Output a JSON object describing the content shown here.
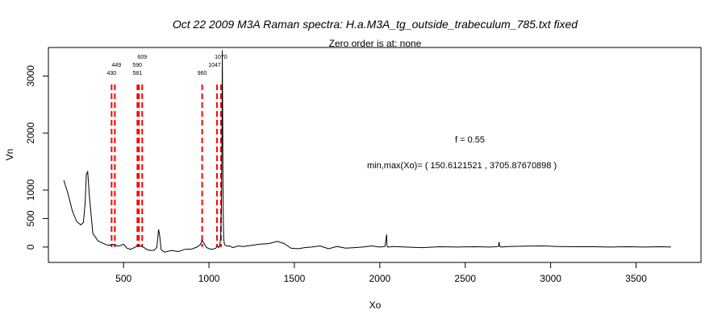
{
  "chart_data": {
    "type": "line",
    "title": "Oct 22 2009 M3A Raman spectra: H.a.M3A_tg_outside_trabeculum_785.txt fixed",
    "subtitle": "Zero order is at:  none",
    "xlabel": "Xo",
    "ylabel": "Vn",
    "xlim": [
      60,
      3880
    ],
    "ylim": [
      -270,
      3500
    ],
    "x_ticks": [
      500,
      1000,
      1500,
      2000,
      2500,
      3000,
      3500
    ],
    "y_ticks": [
      0,
      500,
      1000,
      2000,
      3000
    ],
    "grid": false,
    "legend": "none",
    "line_color": "#000000",
    "marker_color": "#ff0000",
    "peak_markers": [
      {
        "label": "430",
        "x": 430
      },
      {
        "label": "449",
        "x": 449
      },
      {
        "label": "581",
        "x": 581
      },
      {
        "label": "590",
        "x": 590
      },
      {
        "label": "609",
        "x": 609
      },
      {
        "label": "960",
        "x": 960
      },
      {
        "label": "1047",
        "x": 1047
      },
      {
        "label": "1070",
        "x": 1070
      }
    ],
    "marker_range": [
      0,
      2850
    ],
    "annotations": {
      "f_text": "f =  0.55",
      "minmax_text": "min,max(Xo)= ( 150.6121521 , 3705.87670898 )"
    },
    "series": [
      {
        "x": [
          150,
          175,
          200,
          225,
          250,
          265,
          275,
          282,
          290,
          300,
          320,
          350,
          380,
          410,
          440,
          470,
          500,
          520,
          540,
          560,
          580,
          600,
          620,
          640,
          660,
          680,
          695,
          705,
          712,
          720,
          740,
          780,
          820,
          860,
          900,
          930,
          950,
          960,
          972,
          985,
          1000,
          1020,
          1040,
          1050,
          1058,
          1063,
          1068,
          1073,
          1076,
          1078,
          1080,
          1082,
          1084,
          1086,
          1090,
          1096,
          1105,
          1120,
          1140,
          1170,
          1200,
          1250,
          1300,
          1350,
          1400,
          1440,
          1480,
          1520,
          1560,
          1600,
          1650,
          1700,
          1750,
          1800,
          1850,
          1900,
          1950,
          2000,
          2030,
          2040,
          2042,
          2044,
          2046,
          2050,
          2080,
          2150,
          2250,
          2350,
          2450,
          2550,
          2650,
          2695,
          2698,
          2701,
          2704,
          2710,
          2750,
          2850,
          2950,
          3050,
          3150,
          3250,
          3350,
          3450,
          3550,
          3650,
          3705
        ],
        "y": [
          1170,
          930,
          640,
          450,
          390,
          430,
          760,
          1270,
          1330,
          890,
          240,
          110,
          65,
          30,
          45,
          15,
          50,
          -20,
          -40,
          -15,
          20,
          20,
          -10,
          -50,
          -60,
          -55,
          0,
          310,
          180,
          -50,
          -90,
          -60,
          -80,
          -40,
          -35,
          0,
          45,
          120,
          60,
          -5,
          -30,
          -40,
          -20,
          20,
          -10,
          30,
          150,
          700,
          2000,
          3450,
          2400,
          1100,
          420,
          150,
          60,
          30,
          15,
          20,
          -10,
          20,
          10,
          30,
          50,
          60,
          100,
          60,
          -20,
          -30,
          -10,
          0,
          20,
          -30,
          10,
          -20,
          -10,
          0,
          20,
          0,
          10,
          220,
          30,
          10,
          0,
          0,
          10,
          0,
          -10,
          5,
          0,
          5,
          0,
          10,
          90,
          20,
          5,
          0,
          10,
          15,
          20,
          10,
          5,
          5,
          0,
          5,
          0,
          5,
          0
        ]
      }
    ]
  }
}
